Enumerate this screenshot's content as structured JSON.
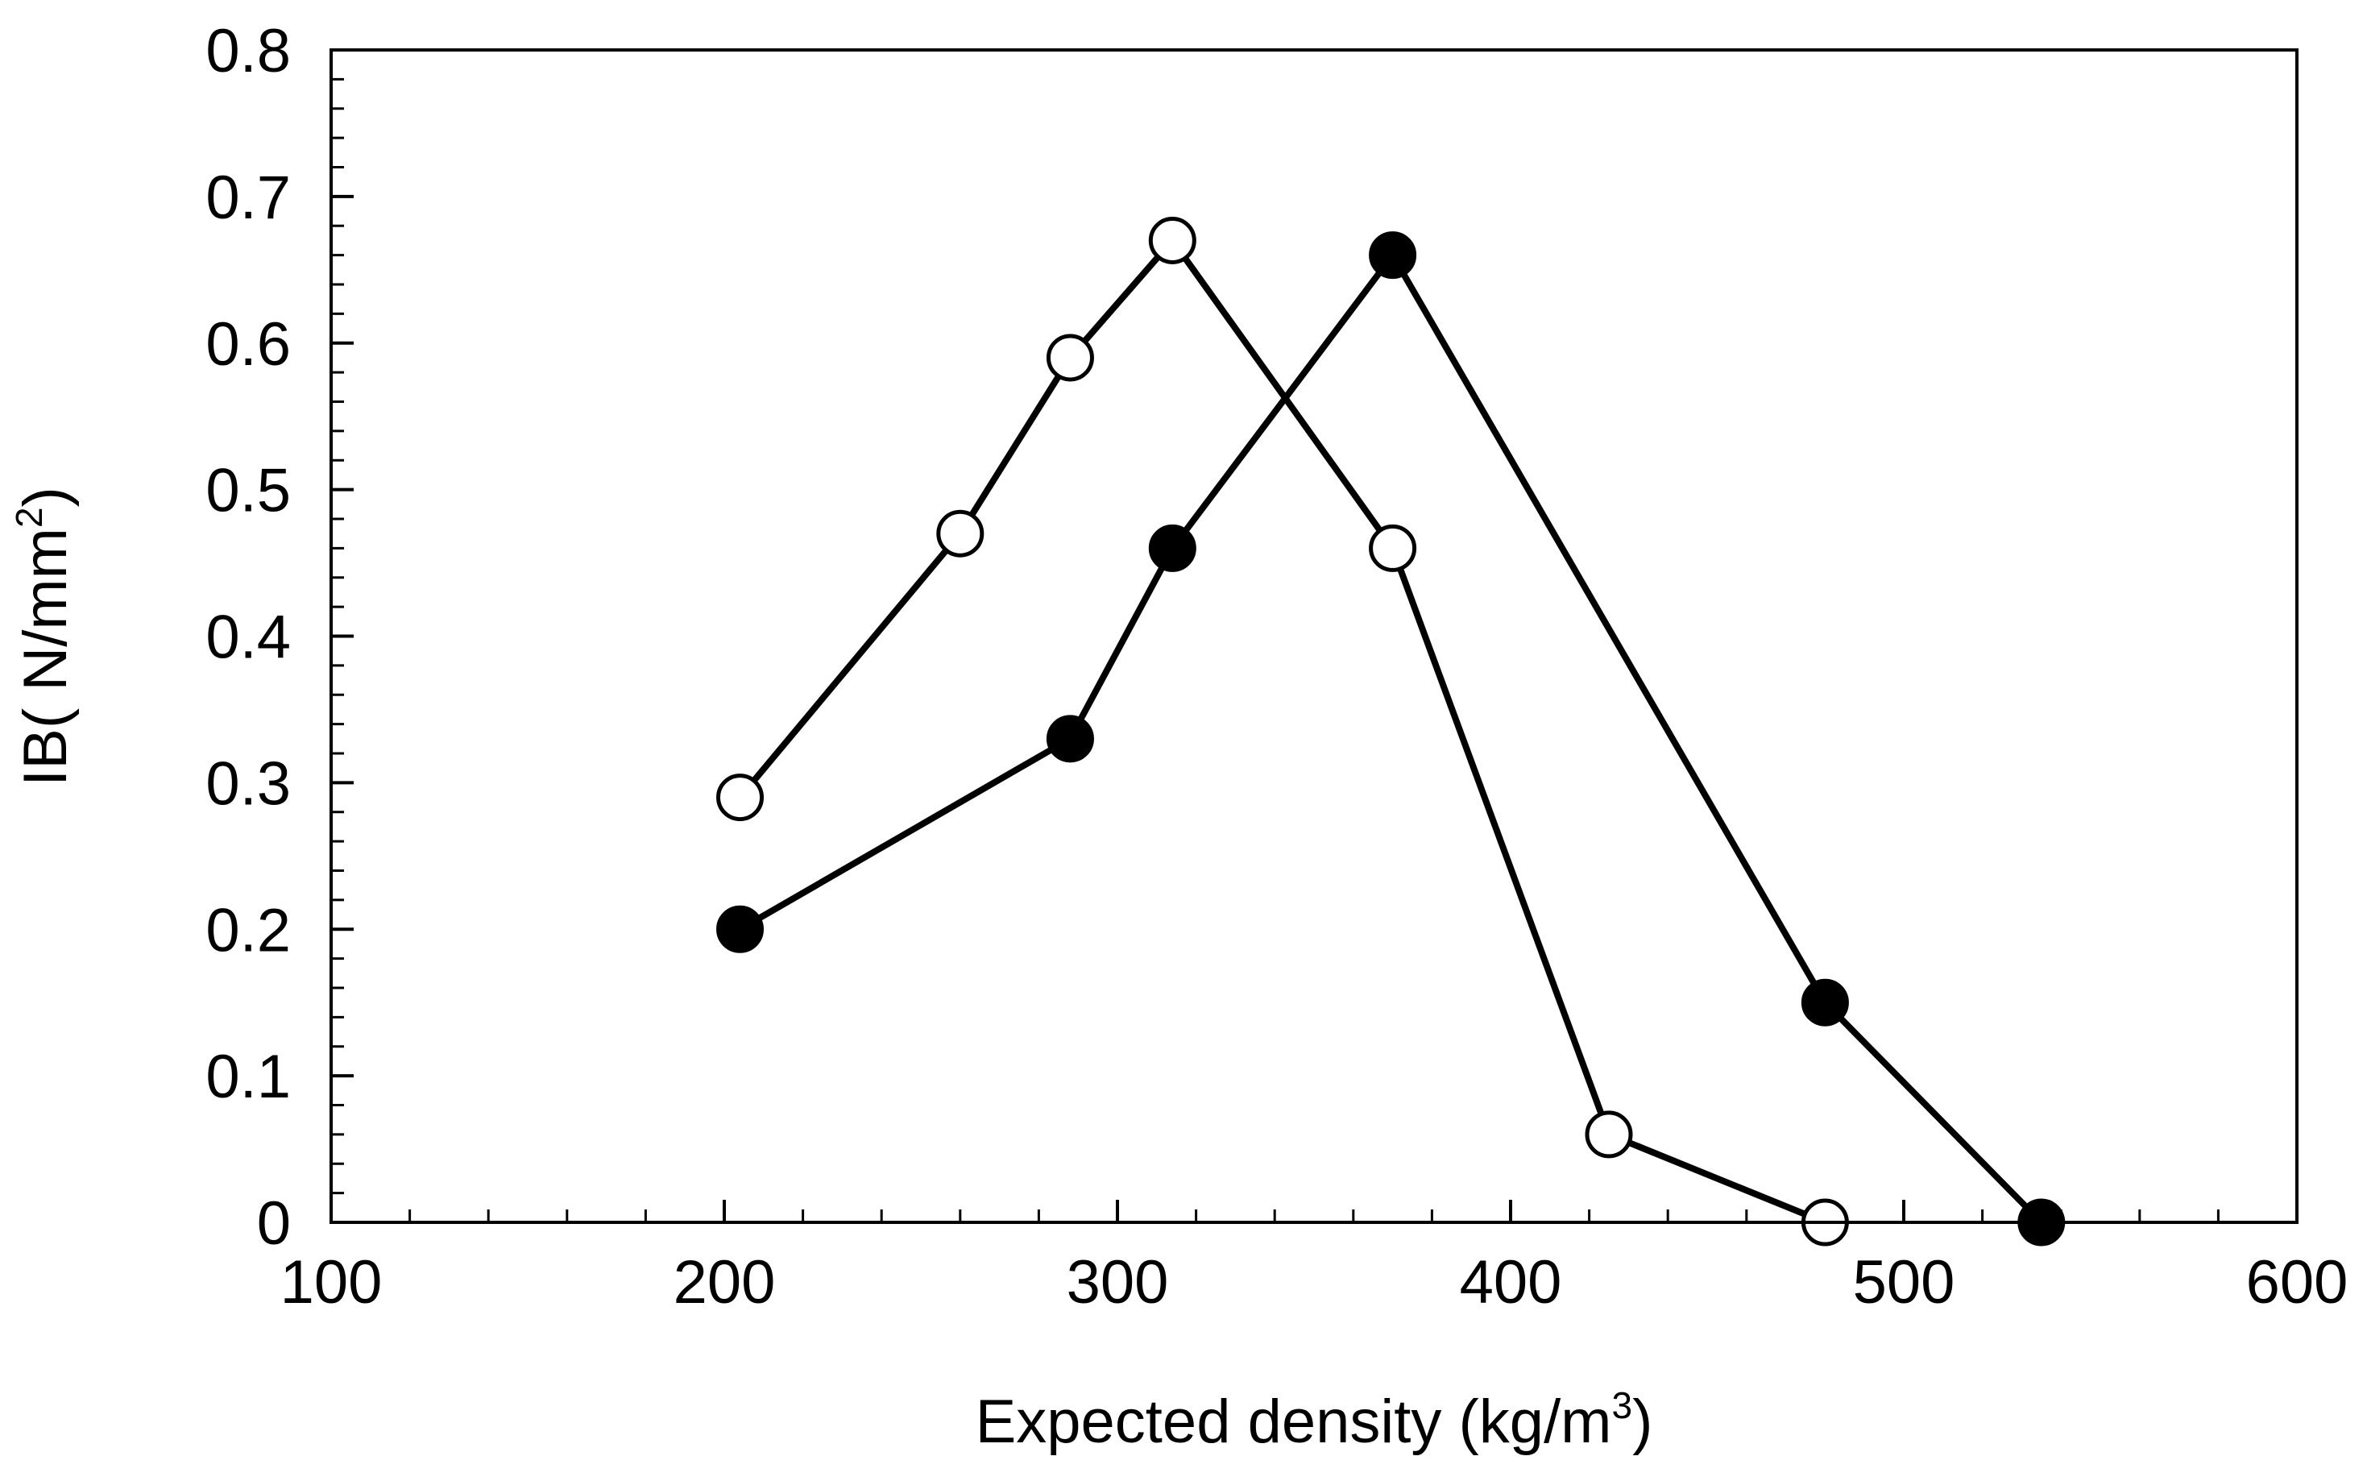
{
  "chart_data": {
    "type": "line",
    "title": "",
    "xlabel": {
      "text": "Expected density (kg/m",
      "superscript": "3",
      "suffix": ")"
    },
    "ylabel": {
      "text": "IB( N/mm",
      "superscript": "2",
      "suffix": ")"
    },
    "xlim": [
      100,
      600
    ],
    "ylim": [
      0,
      0.8
    ],
    "x_ticks": [
      100,
      200,
      300,
      400,
      500,
      600
    ],
    "x_tick_labels": [
      "100",
      "200",
      "300",
      "400",
      "500",
      "600"
    ],
    "y_ticks": [
      0,
      0.1,
      0.2,
      0.3,
      0.4,
      0.5,
      0.6,
      0.7,
      0.8
    ],
    "y_tick_labels": [
      "0",
      "0.1",
      "0.2",
      "0.3",
      "0.4",
      "0.5",
      "0.6",
      "0.7",
      "0.8"
    ],
    "x_minor_step": 20,
    "y_minor_step": 0.02,
    "grid": false,
    "legend": "none",
    "series": [
      {
        "name": "open-circles",
        "marker": "open-circle",
        "color": "#000000",
        "fill": "#ffffff",
        "x": [
          204,
          260,
          288,
          314,
          370,
          425,
          480
        ],
        "y": [
          0.29,
          0.47,
          0.59,
          0.67,
          0.46,
          0.06,
          0.0
        ]
      },
      {
        "name": "filled-circles",
        "marker": "filled-circle",
        "color": "#000000",
        "fill": "#000000",
        "x": [
          204,
          288,
          314,
          370,
          480,
          535
        ],
        "y": [
          0.2,
          0.33,
          0.46,
          0.66,
          0.15,
          0.0
        ]
      }
    ]
  }
}
